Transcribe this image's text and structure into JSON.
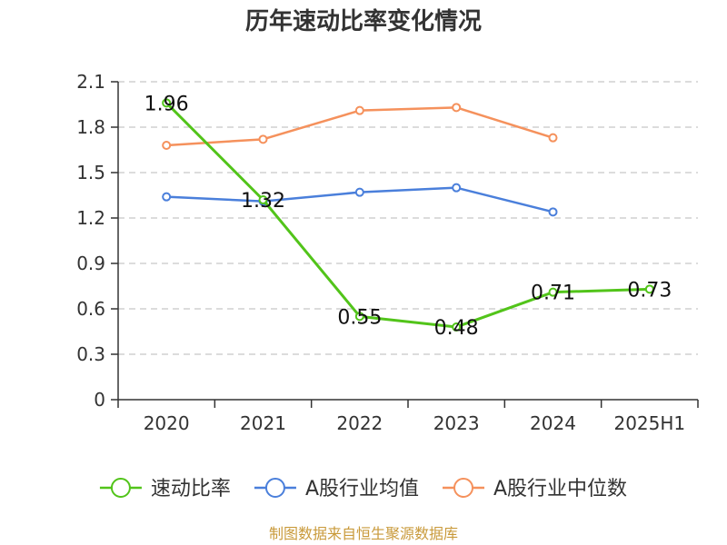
{
  "chart_data": {
    "type": "line",
    "title": "历年速动比率变化情况",
    "categories": [
      "2020",
      "2021",
      "2022",
      "2023",
      "2024",
      "2025H1"
    ],
    "ylim": [
      0,
      2.1
    ],
    "yticks": [
      "0",
      "0.3",
      "0.6",
      "0.9",
      "1.2",
      "1.5",
      "1.8",
      "2.1"
    ],
    "grid": true,
    "legend_position": "bottom",
    "series": [
      {
        "name": "速动比率",
        "color": "#52c41a",
        "values": [
          1.96,
          1.32,
          0.55,
          0.48,
          0.71,
          0.73
        ],
        "labels": [
          "1.96",
          "1.32",
          "0.55",
          "0.48",
          "0.71",
          "0.73"
        ]
      },
      {
        "name": "A股行业均值",
        "color": "#4a7fdb",
        "values": [
          1.34,
          1.31,
          1.37,
          1.4,
          1.24,
          null
        ]
      },
      {
        "name": "A股行业中位数",
        "color": "#f5915c",
        "values": [
          1.68,
          1.72,
          1.91,
          1.93,
          1.73,
          null
        ]
      }
    ]
  },
  "footer": {
    "source": "制图数据来自恒生聚源数据库"
  }
}
